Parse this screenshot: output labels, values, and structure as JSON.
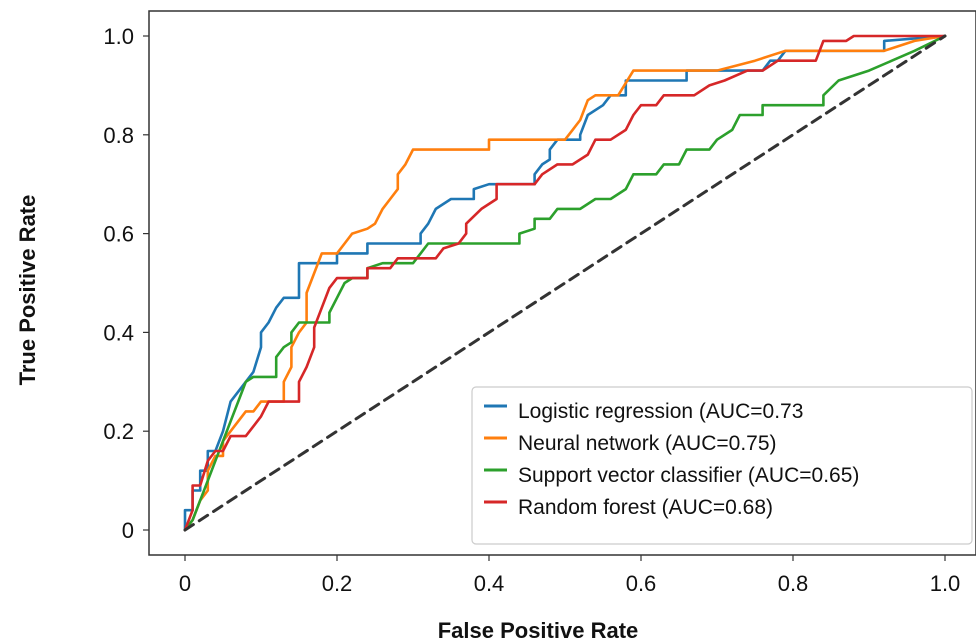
{
  "chart_data": {
    "type": "line",
    "title": "",
    "xlabel": "False Positive Rate",
    "ylabel": "True Positive Rate",
    "xlim": [
      0,
      1
    ],
    "ylim": [
      0,
      1
    ],
    "xticks": [
      {
        "v": 0,
        "label": "0"
      },
      {
        "v": 0.2,
        "label": "0.2"
      },
      {
        "v": 0.4,
        "label": "0.4"
      },
      {
        "v": 0.6,
        "label": "0.6"
      },
      {
        "v": 0.8,
        "label": "0.8"
      },
      {
        "v": 1.0,
        "label": "1.0"
      }
    ],
    "yticks": [
      {
        "v": 0,
        "label": "0"
      },
      {
        "v": 0.2,
        "label": "0.2"
      },
      {
        "v": 0.4,
        "label": "0.4"
      },
      {
        "v": 0.6,
        "label": "0.6"
      },
      {
        "v": 0.8,
        "label": "0.8"
      },
      {
        "v": 1.0,
        "label": "1.0"
      }
    ],
    "grid": false,
    "legend_position": "lower-right",
    "series": [
      {
        "name": "Logistic regression (AUC=0.73",
        "color": "#1f77b4",
        "points": [
          [
            0,
            0
          ],
          [
            0,
            0.04
          ],
          [
            0.01,
            0.04
          ],
          [
            0.01,
            0.08
          ],
          [
            0.02,
            0.08
          ],
          [
            0.02,
            0.12
          ],
          [
            0.03,
            0.12
          ],
          [
            0.03,
            0.16
          ],
          [
            0.04,
            0.16
          ],
          [
            0.05,
            0.2
          ],
          [
            0.06,
            0.26
          ],
          [
            0.07,
            0.28
          ],
          [
            0.08,
            0.3
          ],
          [
            0.09,
            0.32
          ],
          [
            0.1,
            0.37
          ],
          [
            0.1,
            0.4
          ],
          [
            0.11,
            0.42
          ],
          [
            0.12,
            0.45
          ],
          [
            0.13,
            0.47
          ],
          [
            0.15,
            0.47
          ],
          [
            0.15,
            0.54
          ],
          [
            0.2,
            0.54
          ],
          [
            0.2,
            0.56
          ],
          [
            0.24,
            0.56
          ],
          [
            0.24,
            0.58
          ],
          [
            0.31,
            0.58
          ],
          [
            0.31,
            0.6
          ],
          [
            0.32,
            0.62
          ],
          [
            0.33,
            0.65
          ],
          [
            0.35,
            0.67
          ],
          [
            0.38,
            0.67
          ],
          [
            0.38,
            0.69
          ],
          [
            0.4,
            0.7
          ],
          [
            0.46,
            0.7
          ],
          [
            0.46,
            0.72
          ],
          [
            0.47,
            0.74
          ],
          [
            0.48,
            0.75
          ],
          [
            0.48,
            0.77
          ],
          [
            0.49,
            0.79
          ],
          [
            0.52,
            0.79
          ],
          [
            0.52,
            0.8
          ],
          [
            0.53,
            0.84
          ],
          [
            0.55,
            0.86
          ],
          [
            0.56,
            0.88
          ],
          [
            0.58,
            0.88
          ],
          [
            0.58,
            0.91
          ],
          [
            0.62,
            0.91
          ],
          [
            0.66,
            0.91
          ],
          [
            0.66,
            0.93
          ],
          [
            0.76,
            0.93
          ],
          [
            0.77,
            0.95
          ],
          [
            0.78,
            0.95
          ],
          [
            0.79,
            0.97
          ],
          [
            0.92,
            0.97
          ],
          [
            0.92,
            0.99
          ],
          [
            1,
            1
          ]
        ]
      },
      {
        "name": "Neural network (AUC=0.75)",
        "color": "#ff7f0e",
        "points": [
          [
            0,
            0
          ],
          [
            0.01,
            0.02
          ],
          [
            0.02,
            0.06
          ],
          [
            0.03,
            0.08
          ],
          [
            0.03,
            0.12
          ],
          [
            0.04,
            0.15
          ],
          [
            0.05,
            0.15
          ],
          [
            0.05,
            0.18
          ],
          [
            0.06,
            0.2
          ],
          [
            0.07,
            0.22
          ],
          [
            0.08,
            0.24
          ],
          [
            0.09,
            0.24
          ],
          [
            0.1,
            0.26
          ],
          [
            0.13,
            0.26
          ],
          [
            0.13,
            0.3
          ],
          [
            0.14,
            0.33
          ],
          [
            0.14,
            0.37
          ],
          [
            0.15,
            0.4
          ],
          [
            0.16,
            0.42
          ],
          [
            0.16,
            0.48
          ],
          [
            0.17,
            0.52
          ],
          [
            0.18,
            0.56
          ],
          [
            0.2,
            0.56
          ],
          [
            0.21,
            0.58
          ],
          [
            0.22,
            0.6
          ],
          [
            0.24,
            0.61
          ],
          [
            0.25,
            0.62
          ],
          [
            0.26,
            0.65
          ],
          [
            0.27,
            0.67
          ],
          [
            0.28,
            0.69
          ],
          [
            0.28,
            0.72
          ],
          [
            0.29,
            0.74
          ],
          [
            0.3,
            0.77
          ],
          [
            0.4,
            0.77
          ],
          [
            0.4,
            0.79
          ],
          [
            0.5,
            0.79
          ],
          [
            0.51,
            0.81
          ],
          [
            0.52,
            0.83
          ],
          [
            0.53,
            0.87
          ],
          [
            0.54,
            0.88
          ],
          [
            0.57,
            0.88
          ],
          [
            0.59,
            0.93
          ],
          [
            0.7,
            0.93
          ],
          [
            0.75,
            0.95
          ],
          [
            0.79,
            0.97
          ],
          [
            0.92,
            0.97
          ],
          [
            0.96,
            0.99
          ],
          [
            1,
            1
          ]
        ]
      },
      {
        "name": "Support vector classifier (AUC=0.65)",
        "color": "#2ca02c",
        "points": [
          [
            0,
            0
          ],
          [
            0.01,
            0.02
          ],
          [
            0.02,
            0.06
          ],
          [
            0.03,
            0.1
          ],
          [
            0.04,
            0.14
          ],
          [
            0.05,
            0.18
          ],
          [
            0.06,
            0.22
          ],
          [
            0.07,
            0.26
          ],
          [
            0.08,
            0.3
          ],
          [
            0.09,
            0.31
          ],
          [
            0.12,
            0.31
          ],
          [
            0.12,
            0.35
          ],
          [
            0.13,
            0.37
          ],
          [
            0.14,
            0.38
          ],
          [
            0.14,
            0.4
          ],
          [
            0.15,
            0.42
          ],
          [
            0.19,
            0.42
          ],
          [
            0.19,
            0.44
          ],
          [
            0.2,
            0.47
          ],
          [
            0.21,
            0.5
          ],
          [
            0.22,
            0.51
          ],
          [
            0.24,
            0.51
          ],
          [
            0.24,
            0.53
          ],
          [
            0.26,
            0.54
          ],
          [
            0.3,
            0.54
          ],
          [
            0.31,
            0.56
          ],
          [
            0.32,
            0.58
          ],
          [
            0.44,
            0.58
          ],
          [
            0.44,
            0.6
          ],
          [
            0.46,
            0.61
          ],
          [
            0.46,
            0.63
          ],
          [
            0.48,
            0.63
          ],
          [
            0.49,
            0.65
          ],
          [
            0.5,
            0.65
          ],
          [
            0.52,
            0.65
          ],
          [
            0.54,
            0.67
          ],
          [
            0.56,
            0.67
          ],
          [
            0.58,
            0.69
          ],
          [
            0.59,
            0.72
          ],
          [
            0.62,
            0.72
          ],
          [
            0.63,
            0.74
          ],
          [
            0.65,
            0.74
          ],
          [
            0.66,
            0.77
          ],
          [
            0.69,
            0.77
          ],
          [
            0.7,
            0.79
          ],
          [
            0.72,
            0.81
          ],
          [
            0.73,
            0.84
          ],
          [
            0.76,
            0.84
          ],
          [
            0.76,
            0.86
          ],
          [
            0.84,
            0.86
          ],
          [
            0.84,
            0.88
          ],
          [
            0.86,
            0.91
          ],
          [
            0.9,
            0.93
          ],
          [
            0.93,
            0.95
          ],
          [
            0.96,
            0.97
          ],
          [
            1,
            1
          ]
        ]
      },
      {
        "name": "Random forest (AUC=0.68)",
        "color": "#d62728",
        "points": [
          [
            0,
            0
          ],
          [
            0.01,
            0.04
          ],
          [
            0.01,
            0.09
          ],
          [
            0.02,
            0.09
          ],
          [
            0.03,
            0.14
          ],
          [
            0.04,
            0.16
          ],
          [
            0.05,
            0.16
          ],
          [
            0.06,
            0.19
          ],
          [
            0.08,
            0.19
          ],
          [
            0.09,
            0.21
          ],
          [
            0.1,
            0.23
          ],
          [
            0.11,
            0.26
          ],
          [
            0.15,
            0.26
          ],
          [
            0.15,
            0.3
          ],
          [
            0.16,
            0.33
          ],
          [
            0.17,
            0.37
          ],
          [
            0.17,
            0.41
          ],
          [
            0.18,
            0.45
          ],
          [
            0.19,
            0.49
          ],
          [
            0.2,
            0.51
          ],
          [
            0.24,
            0.51
          ],
          [
            0.24,
            0.53
          ],
          [
            0.27,
            0.53
          ],
          [
            0.28,
            0.55
          ],
          [
            0.33,
            0.55
          ],
          [
            0.34,
            0.57
          ],
          [
            0.36,
            0.58
          ],
          [
            0.37,
            0.6
          ],
          [
            0.37,
            0.62
          ],
          [
            0.39,
            0.65
          ],
          [
            0.41,
            0.67
          ],
          [
            0.41,
            0.7
          ],
          [
            0.46,
            0.7
          ],
          [
            0.47,
            0.72
          ],
          [
            0.49,
            0.74
          ],
          [
            0.51,
            0.74
          ],
          [
            0.53,
            0.76
          ],
          [
            0.54,
            0.79
          ],
          [
            0.56,
            0.79
          ],
          [
            0.58,
            0.81
          ],
          [
            0.59,
            0.84
          ],
          [
            0.6,
            0.86
          ],
          [
            0.62,
            0.86
          ],
          [
            0.63,
            0.88
          ],
          [
            0.67,
            0.88
          ],
          [
            0.69,
            0.9
          ],
          [
            0.71,
            0.91
          ],
          [
            0.74,
            0.93
          ],
          [
            0.76,
            0.93
          ],
          [
            0.78,
            0.95
          ],
          [
            0.83,
            0.95
          ],
          [
            0.84,
            0.99
          ],
          [
            0.87,
            0.99
          ],
          [
            0.88,
            1
          ],
          [
            1,
            1
          ]
        ]
      },
      {
        "name": "",
        "color": "#333333",
        "dashed": true,
        "points": [
          [
            0,
            0
          ],
          [
            1,
            1
          ]
        ]
      }
    ]
  }
}
